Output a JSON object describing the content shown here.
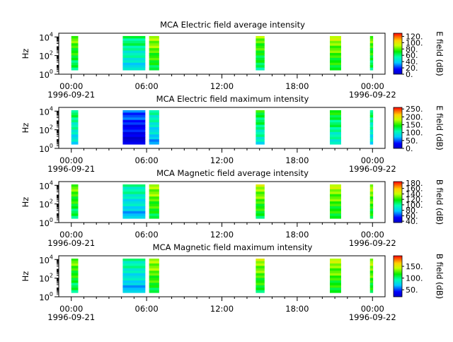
{
  "figure": {
    "x_tick_labels": [
      "00:00",
      "06:00",
      "12:00",
      "18:00",
      "00:00"
    ],
    "x_tick_hours": [
      0,
      6,
      12,
      18,
      24
    ],
    "date_labels": [
      {
        "text": "1996-09-21",
        "hour": 0
      },
      {
        "text": "1996-09-22",
        "hour": 24
      }
    ],
    "y_label": "Hz",
    "y_tick_labels": [
      {
        "base": "10",
        "exp": "0",
        "log": 0
      },
      {
        "base": "10",
        "exp": "2",
        "log": 2
      },
      {
        "base": "10",
        "exp": "4",
        "log": 4
      }
    ]
  },
  "chart_data": [
    {
      "type": "heatmap",
      "title": "MCA  Electric field average intensity",
      "colorbar_label": "E field (dB)",
      "colorbar_ticks": [
        "0.",
        "20.",
        "40.",
        "60.",
        "80.",
        "100.",
        "120."
      ],
      "colorbar_range": [
        0,
        130
      ],
      "xlim": [
        -1,
        25
      ],
      "ylim_log10": [
        0,
        4.4
      ],
      "y_unit": "Hz",
      "blocks": [
        {
          "start_hour": 0.0,
          "end_hour": 0.55,
          "level": 0.55
        },
        {
          "start_hour": 4.1,
          "end_hour": 5.9,
          "level": 0.4
        },
        {
          "start_hour": 6.2,
          "end_hour": 7.0,
          "level": 0.6
        },
        {
          "start_hour": 14.7,
          "end_hour": 15.4,
          "level": 0.55
        },
        {
          "start_hour": 20.6,
          "end_hour": 21.5,
          "level": 0.6
        },
        {
          "start_hour": 23.8,
          "end_hour": 24.05,
          "level": 0.55
        }
      ]
    },
    {
      "type": "heatmap",
      "title": "MCA  Electric field maximum intensity",
      "colorbar_label": "E field (dB)",
      "colorbar_ticks": [
        "0.",
        "50.",
        "100.",
        "150.",
        "200.",
        "250."
      ],
      "colorbar_range": [
        0,
        260
      ],
      "xlim": [
        -1,
        25
      ],
      "ylim_log10": [
        0,
        4.4
      ],
      "y_unit": "Hz",
      "blocks": [
        {
          "start_hour": 0.0,
          "end_hour": 0.55,
          "level": 0.4
        },
        {
          "start_hour": 4.1,
          "end_hour": 5.9,
          "level": 0.12
        },
        {
          "start_hour": 6.2,
          "end_hour": 7.0,
          "level": 0.35
        },
        {
          "start_hour": 14.7,
          "end_hour": 15.4,
          "level": 0.45
        },
        {
          "start_hour": 20.6,
          "end_hour": 21.5,
          "level": 0.45
        },
        {
          "start_hour": 23.8,
          "end_hour": 24.05,
          "level": 0.4
        }
      ]
    },
    {
      "type": "heatmap",
      "title": "MCA  Magnetic field average intensity",
      "colorbar_label": "B field (dB)",
      "colorbar_ticks": [
        "40.",
        "60.",
        "80.",
        "100.",
        "120.",
        "140.",
        "160.",
        "180."
      ],
      "colorbar_range": [
        35,
        185
      ],
      "xlim": [
        -1,
        25
      ],
      "ylim_log10": [
        0,
        4.4
      ],
      "y_unit": "Hz",
      "blocks": [
        {
          "start_hour": 0.0,
          "end_hour": 0.55,
          "level": 0.55
        },
        {
          "start_hour": 4.1,
          "end_hour": 5.9,
          "level": 0.35
        },
        {
          "start_hour": 6.2,
          "end_hour": 7.0,
          "level": 0.6
        },
        {
          "start_hour": 14.7,
          "end_hour": 15.4,
          "level": 0.6
        },
        {
          "start_hour": 20.6,
          "end_hour": 21.5,
          "level": 0.6
        },
        {
          "start_hour": 23.8,
          "end_hour": 24.05,
          "level": 0.6
        }
      ]
    },
    {
      "type": "heatmap",
      "title": "MCA  Magnetic field maximum intensity",
      "colorbar_label": "B field (dB)",
      "colorbar_ticks": [
        "50.",
        "100.",
        "150."
      ],
      "colorbar_range": [
        20,
        195
      ],
      "xlim": [
        -1,
        25
      ],
      "ylim_log10": [
        0,
        4.4
      ],
      "y_unit": "Hz",
      "blocks": [
        {
          "start_hour": 0.0,
          "end_hour": 0.55,
          "level": 0.55
        },
        {
          "start_hour": 4.1,
          "end_hour": 5.9,
          "level": 0.35
        },
        {
          "start_hour": 6.2,
          "end_hour": 7.0,
          "level": 0.6
        },
        {
          "start_hour": 14.7,
          "end_hour": 15.4,
          "level": 0.6
        },
        {
          "start_hour": 20.6,
          "end_hour": 21.5,
          "level": 0.6
        },
        {
          "start_hour": 23.8,
          "end_hour": 24.05,
          "level": 0.6
        }
      ]
    }
  ]
}
